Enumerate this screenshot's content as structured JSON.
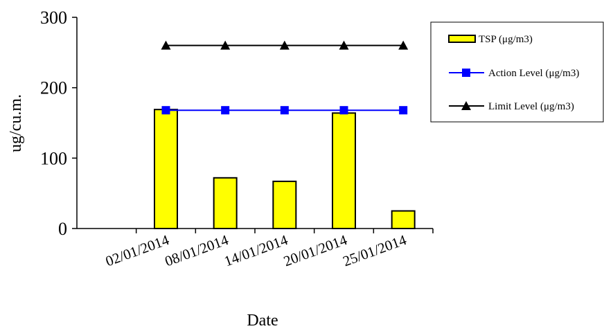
{
  "chart_data": {
    "type": "bar",
    "categories": [
      "",
      "02/01/2014",
      "08/01/2014",
      "14/01/2014",
      "20/01/2014",
      "25/01/2014"
    ],
    "series": [
      {
        "name": "TSP (μg/m3)",
        "kind": "bar",
        "color": "#ffff00",
        "values": [
          null,
          169,
          72,
          67,
          164,
          25
        ]
      },
      {
        "name": "Action Level (μg/m3)",
        "kind": "line",
        "marker": "square",
        "color": "#0000ff",
        "values": [
          null,
          168,
          168,
          168,
          168,
          168
        ]
      },
      {
        "name": "Limit Level (μg/m3)",
        "kind": "line",
        "marker": "triangle",
        "color": "#000000",
        "values": [
          null,
          260,
          260,
          260,
          260,
          260
        ]
      }
    ],
    "xlabel": "Date",
    "ylabel": "ug/cu.m.",
    "ylim": [
      0,
      300
    ],
    "yticks": [
      0,
      100,
      200,
      300
    ],
    "grid": false,
    "legend_position": "top-right"
  }
}
